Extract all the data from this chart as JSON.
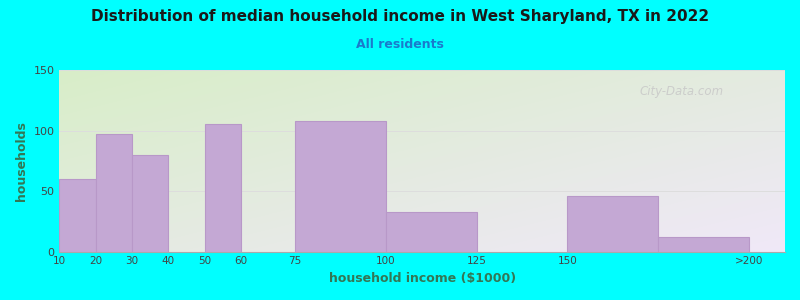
{
  "title": "Distribution of median household income in West Sharyland, TX in 2022",
  "subtitle": "All residents",
  "xlabel": "household income ($1000)",
  "ylabel": "households",
  "background_color": "#00FFFF",
  "plot_bg_gradient_top_left": "#d8eec8",
  "plot_bg_gradient_bottom_right": "#f0e8f8",
  "bar_color": "#c4a8d4",
  "bar_edge_color": "#b898c8",
  "title_color": "#1a1a1a",
  "subtitle_color": "#1a7acc",
  "axis_label_color": "#337755",
  "tick_label_color": "#444444",
  "grid_color": "#dddddd",
  "watermark": "City-Data.com",
  "watermark_color": "#c8c8c8",
  "bar_lefts": [
    10,
    20,
    30,
    40,
    50,
    60,
    75,
    100,
    125,
    150,
    175
  ],
  "bar_widths": [
    10,
    10,
    10,
    10,
    10,
    15,
    25,
    25,
    25,
    25,
    25
  ],
  "bar_heights": [
    60,
    97,
    80,
    0,
    105,
    0,
    108,
    33,
    0,
    46,
    12
  ],
  "xtick_positions": [
    10,
    20,
    30,
    40,
    50,
    60,
    75,
    100,
    125,
    150,
    200
  ],
  "xtick_labels": [
    "10",
    "20",
    "30",
    "40",
    "50",
    "60",
    "75",
    "100",
    "125",
    "150",
    ">200"
  ],
  "xlim": [
    10,
    210
  ],
  "ylim": [
    0,
    150
  ],
  "yticks": [
    0,
    50,
    100,
    150
  ]
}
